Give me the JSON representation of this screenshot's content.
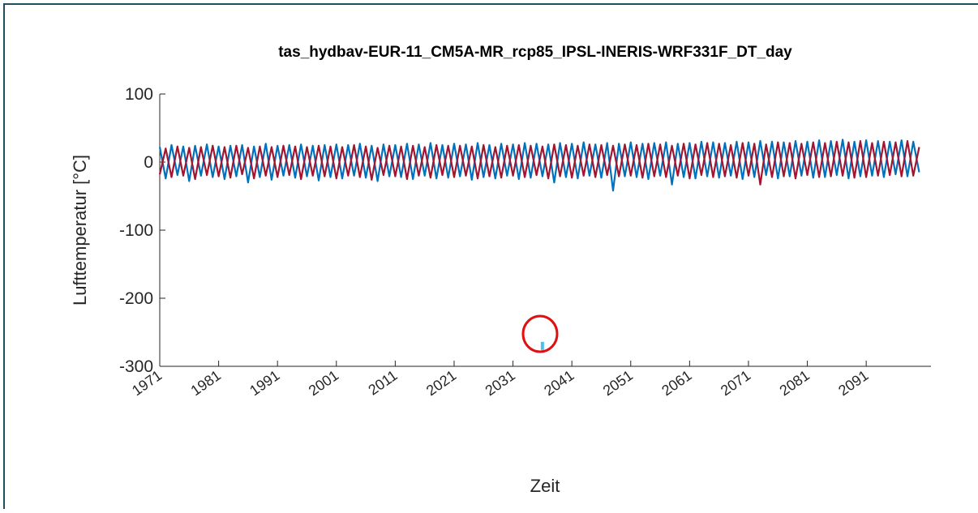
{
  "chart_data": {
    "type": "line",
    "title": "tas_hydbav-EUR-11_CM5A-MR_rcp85_IPSL-INERIS-WRF331F_DT_day",
    "y_label": "Lufttemperatur [°C]",
    "x_label": "Zeit",
    "xlim": [
      1971,
      2102
    ],
    "xticks": [
      1971,
      1981,
      1991,
      2001,
      2011,
      2021,
      2031,
      2041,
      2051,
      2061,
      2071,
      2081,
      2091
    ],
    "ylim": [
      -300,
      100
    ],
    "yticks": [
      -300,
      -200,
      -100,
      0,
      100
    ],
    "x": [
      1971,
      1972,
      1973,
      1974,
      1975,
      1976,
      1977,
      1978,
      1979,
      1980,
      1981,
      1982,
      1983,
      1984,
      1985,
      1986,
      1987,
      1988,
      1989,
      1990,
      1991,
      1992,
      1993,
      1994,
      1995,
      1996,
      1997,
      1998,
      1999,
      2000,
      2001,
      2002,
      2003,
      2004,
      2005,
      2006,
      2007,
      2008,
      2009,
      2010,
      2011,
      2012,
      2013,
      2014,
      2015,
      2016,
      2017,
      2018,
      2019,
      2020,
      2021,
      2022,
      2023,
      2024,
      2025,
      2026,
      2027,
      2028,
      2029,
      2030,
      2031,
      2032,
      2033,
      2034,
      2035,
      2036,
      2037,
      2038,
      2039,
      2040,
      2041,
      2042,
      2043,
      2044,
      2045,
      2046,
      2047,
      2048,
      2049,
      2050,
      2051,
      2052,
      2053,
      2054,
      2055,
      2056,
      2057,
      2058,
      2059,
      2060,
      2061,
      2062,
      2063,
      2064,
      2065,
      2066,
      2067,
      2068,
      2069,
      2070,
      2071,
      2072,
      2073,
      2074,
      2075,
      2076,
      2077,
      2078,
      2079,
      2080,
      2081,
      2082,
      2083,
      2084,
      2085,
      2086,
      2087,
      2088,
      2089,
      2090,
      2091,
      2092,
      2093,
      2094,
      2095,
      2096,
      2097,
      2098,
      2099,
      2100
    ],
    "series": [
      {
        "color": "#0072bd",
        "values": [
          22,
          -24,
          25,
          -19,
          23,
          -28,
          24,
          -20,
          26,
          -22,
          23,
          -25,
          24,
          -21,
          25,
          -30,
          23,
          -22,
          27,
          -26,
          24,
          -20,
          25,
          -23,
          26,
          -21,
          24,
          -27,
          25,
          -22,
          26,
          -24,
          25,
          -20,
          27,
          -23,
          24,
          -28,
          26,
          -21,
          25,
          -22,
          27,
          -25,
          26,
          -20,
          28,
          -24,
          25,
          -23,
          27,
          -21,
          26,
          -26,
          28,
          -22,
          25,
          -24,
          27,
          -20,
          26,
          -25,
          28,
          -23,
          27,
          -21,
          26,
          -30,
          28,
          -22,
          27,
          -24,
          29,
          -20,
          26,
          -23,
          28,
          -42,
          27,
          -21,
          29,
          -22,
          27,
          -25,
          28,
          -20,
          29,
          -33,
          27,
          -22,
          28,
          -24,
          30,
          -21,
          29,
          -23,
          28,
          -20,
          30,
          -25,
          29,
          -22,
          31,
          -19,
          30,
          -24,
          29,
          -21,
          31,
          -20,
          30,
          -23,
          32,
          -22,
          31,
          -19,
          33,
          -24,
          30,
          -21,
          32,
          -20,
          31,
          -22,
          30,
          -18,
          32,
          -21,
          30,
          -15
        ]
      },
      {
        "color": "#a2142f",
        "values": [
          -18,
          20,
          -22,
          23,
          -20,
          21,
          -25,
          22,
          -19,
          24,
          -21,
          22,
          -23,
          24,
          -18,
          21,
          -24,
          23,
          -20,
          22,
          -22,
          24,
          -19,
          23,
          -25,
          22,
          -20,
          24,
          -21,
          23,
          -24,
          22,
          -20,
          25,
          -22,
          23,
          -26,
          21,
          -19,
          24,
          -21,
          23,
          -25,
          24,
          -20,
          22,
          -23,
          25,
          -19,
          24,
          -22,
          24,
          -20,
          23,
          -24,
          25,
          -21,
          22,
          -23,
          24,
          -20,
          25,
          -22,
          24,
          -19,
          23,
          -24,
          26,
          -21,
          25,
          -23,
          24,
          -20,
          26,
          -22,
          25,
          -19,
          24,
          -21,
          26,
          -20,
          25,
          -23,
          27,
          -21,
          26,
          -22,
          24,
          -20,
          27,
          -24,
          26,
          -19,
          28,
          -22,
          27,
          -21,
          25,
          -23,
          28,
          -20,
          27,
          -33,
          26,
          -22,
          29,
          -21,
          28,
          -24,
          27,
          -19,
          29,
          -22,
          28,
          -21,
          30,
          -20,
          29,
          -23,
          31,
          -22,
          28,
          -20,
          30,
          -19,
          29,
          -21,
          31,
          -20,
          22
        ]
      },
      {
        "color": "#4dbeee",
        "x": [
          2036
        ],
        "values": [
          -270
        ]
      }
    ]
  }
}
